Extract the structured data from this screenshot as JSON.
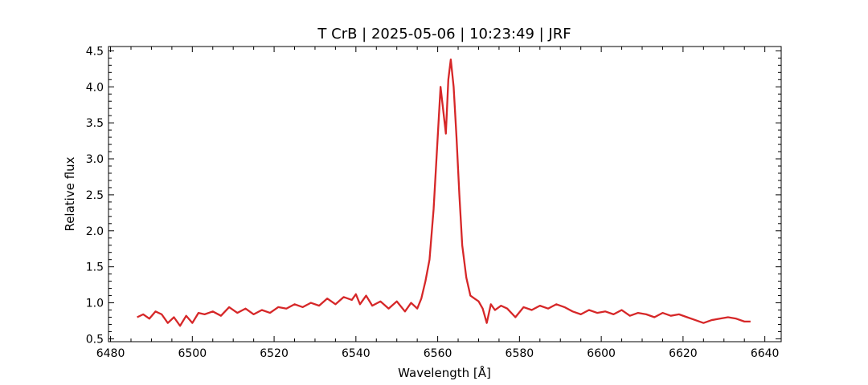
{
  "chart_data": {
    "type": "line",
    "title": "T CrB | 2025-05-06 | 10:23:49 | JRF",
    "xlabel": "Wavelength [Å]",
    "ylabel": "Relative flux",
    "xlim": [
      6479.5,
      6644
    ],
    "ylim": [
      0.46,
      4.56
    ],
    "xticks": [
      6480,
      6500,
      6520,
      6540,
      6560,
      6580,
      6600,
      6620,
      6640
    ],
    "xtick_labels": [
      "6480",
      "6500",
      "6520",
      "6540",
      "6560",
      "6580",
      "6600",
      "6620",
      "6640"
    ],
    "yticks": [
      0.5,
      1.0,
      1.5,
      2.0,
      2.5,
      3.0,
      3.5,
      4.0,
      4.5
    ],
    "ytick_labels": [
      "0.5",
      "1.0",
      "1.5",
      "2.0",
      "2.5",
      "3.0",
      "3.5",
      "4.0",
      "4.5"
    ],
    "grid": false,
    "series": [
      {
        "color": "#d62728",
        "x": [
          6486.5,
          6488,
          6489.5,
          6491,
          6492.5,
          6494,
          6495.5,
          6497,
          6498.5,
          6500,
          6501.5,
          6503,
          6505,
          6507,
          6509,
          6511,
          6513,
          6515,
          6517,
          6519,
          6521,
          6523,
          6525,
          6527,
          6529,
          6531,
          6533,
          6535,
          6537,
          6539,
          6540,
          6541,
          6542.5,
          6544,
          6546,
          6548,
          6550,
          6552,
          6553.5,
          6555,
          6556,
          6557,
          6558,
          6559,
          6560,
          6560.7,
          6561.3,
          6562,
          6562.6,
          6563.2,
          6563.9,
          6564.6,
          6565.3,
          6566,
          6567,
          6568,
          6569,
          6570,
          6571,
          6572,
          6573,
          6574,
          6575.5,
          6577,
          6579,
          6581,
          6583,
          6585,
          6587,
          6589,
          6591,
          6593,
          6595,
          6597,
          6599,
          6601,
          6603,
          6605,
          6607,
          6609,
          6611,
          6613,
          6615,
          6617,
          6619,
          6621,
          6623,
          6625,
          6627,
          6629,
          6631,
          6633,
          6635,
          6636.5
        ],
        "y": [
          0.8,
          0.84,
          0.78,
          0.88,
          0.84,
          0.72,
          0.8,
          0.68,
          0.82,
          0.72,
          0.86,
          0.84,
          0.88,
          0.82,
          0.94,
          0.86,
          0.92,
          0.84,
          0.9,
          0.86,
          0.94,
          0.92,
          0.98,
          0.94,
          1.0,
          0.96,
          1.06,
          0.98,
          1.08,
          1.04,
          1.12,
          0.98,
          1.1,
          0.96,
          1.02,
          0.92,
          1.02,
          0.88,
          1.0,
          0.92,
          1.06,
          1.3,
          1.6,
          2.3,
          3.3,
          4.0,
          3.7,
          3.35,
          4.1,
          4.38,
          4.0,
          3.3,
          2.5,
          1.8,
          1.35,
          1.1,
          1.06,
          1.02,
          0.92,
          0.72,
          0.98,
          0.9,
          0.96,
          0.92,
          0.8,
          0.94,
          0.9,
          0.96,
          0.92,
          0.98,
          0.94,
          0.88,
          0.84,
          0.9,
          0.86,
          0.88,
          0.84,
          0.9,
          0.82,
          0.86,
          0.84,
          0.8,
          0.86,
          0.82,
          0.84,
          0.8,
          0.76,
          0.72,
          0.76,
          0.78,
          0.8,
          0.78,
          0.74,
          0.74
        ]
      }
    ]
  }
}
